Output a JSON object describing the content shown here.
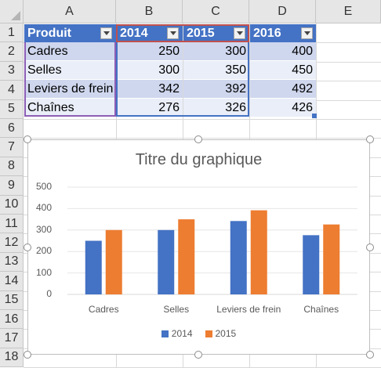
{
  "columns": [
    "A",
    "B",
    "C",
    "D",
    "E"
  ],
  "rows": [
    "1",
    "2",
    "3",
    "4",
    "5",
    "6",
    "7",
    "8",
    "9",
    "10",
    "11",
    "12",
    "13",
    "14",
    "15",
    "16",
    "17",
    "18"
  ],
  "table": {
    "headers": [
      "Produit",
      "2014",
      "2015",
      "2016"
    ],
    "data": [
      [
        "Cadres",
        "250",
        "300",
        "400"
      ],
      [
        "Selles",
        "300",
        "350",
        "450"
      ],
      [
        "Leviers de frein",
        "342",
        "392",
        "492"
      ],
      [
        "Chaînes",
        "276",
        "326",
        "426"
      ]
    ]
  },
  "chart": {
    "title": "Titre du graphique",
    "legend": [
      "2014",
      "2015"
    ]
  },
  "chart_data": {
    "type": "bar",
    "title": "Titre du graphique",
    "categories": [
      "Cadres",
      "Selles",
      "Leviers de frein",
      "Chaînes"
    ],
    "series": [
      {
        "name": "2014",
        "values": [
          250,
          300,
          342,
          276
        ],
        "color": "#4472c4"
      },
      {
        "name": "2015",
        "values": [
          300,
          350,
          392,
          326
        ],
        "color": "#ed7d31"
      }
    ],
    "ylim": [
      0,
      500
    ],
    "yticks": [
      "0",
      "100",
      "200",
      "300",
      "400",
      "500"
    ],
    "grid": true,
    "legend": "bottom"
  }
}
